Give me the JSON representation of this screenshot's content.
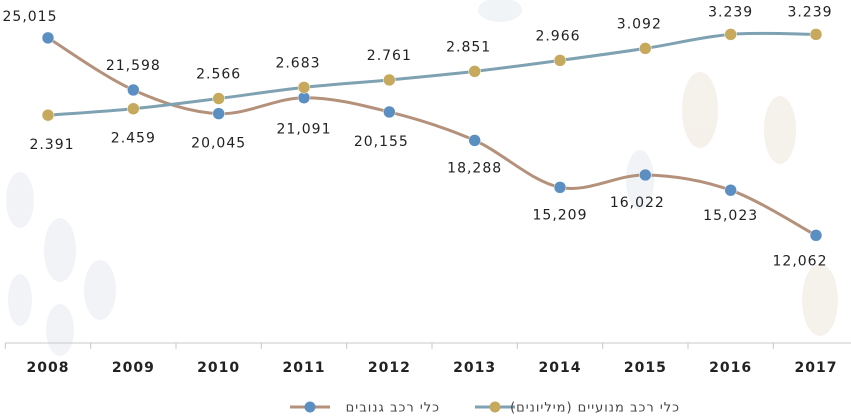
{
  "chart_data": {
    "type": "line",
    "categories": [
      "2008",
      "2009",
      "2010",
      "2011",
      "2012",
      "2013",
      "2014",
      "2015",
      "2016",
      "2017"
    ],
    "series": [
      {
        "name": "כלי רכב גנובים",
        "color": "#b4917a",
        "marker_color": "#5b8fc2",
        "values": [
          25015,
          21598,
          20045,
          21091,
          20155,
          18288,
          15209,
          16022,
          15023,
          12062
        ],
        "value_labels": [
          "25,015",
          "21,598",
          "20,045",
          "21,091",
          "20,155",
          "18,288",
          "15,209",
          "16,022",
          "15,023",
          "12,062"
        ]
      },
      {
        "name": "כלי רכב מנועיים (מיליונים)",
        "color": "#7fa2b3",
        "marker_color": "#c6a95c",
        "axis": "y2",
        "values": [
          2.391,
          2.459,
          2.566,
          2.683,
          2.761,
          2.851,
          2.966,
          3.092,
          3.239,
          3.239
        ]
      }
    ],
    "ylim": [
      5000,
      27500
    ],
    "y2lim": [
      0,
      3.6
    ]
  }
}
